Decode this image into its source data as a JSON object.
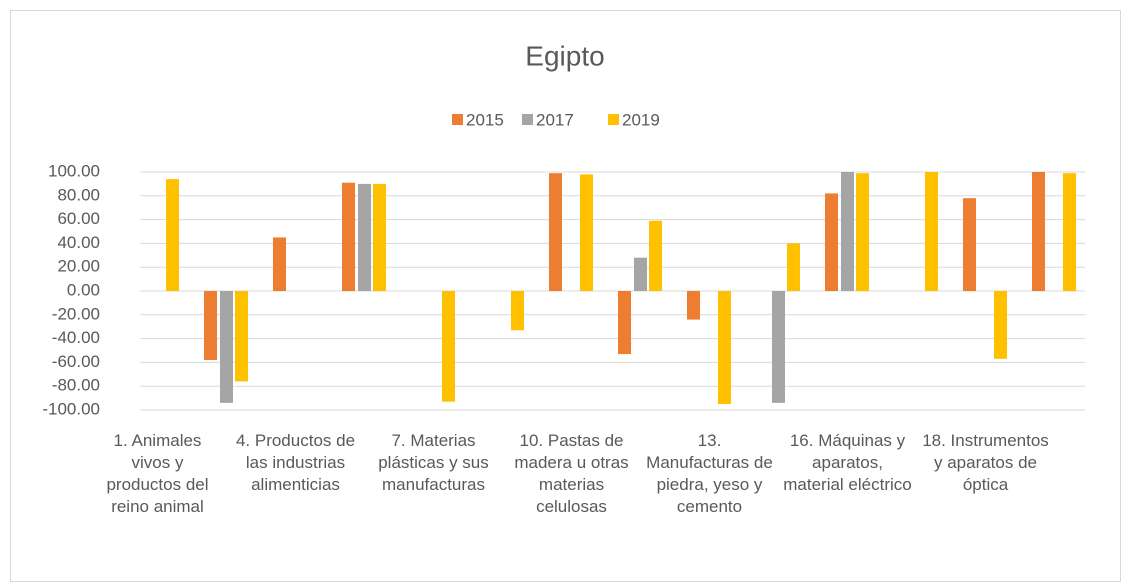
{
  "chart_data": {
    "type": "bar",
    "title": "Egipto",
    "categories": [
      "1. Animales vivos y productos del reino animal",
      null,
      "4. Productos de las industrias alimenticias",
      null,
      "7. Materias plásticas y sus manufacturas",
      null,
      "10. Pastas de madera u otras materias celulosas",
      null,
      "13. Manufacturas de piedra, yeso y cemento",
      null,
      "16. Máquinas y aparatos, material eléctrico",
      null,
      "18. Instrumentos y aparatos de óptica",
      null
    ],
    "series": [
      {
        "name": "2015",
        "color": "#ed7d31",
        "values": [
          null,
          -58,
          45,
          91,
          null,
          null,
          99,
          -53,
          -24,
          null,
          82,
          null,
          78,
          100
        ]
      },
      {
        "name": "2017",
        "color": "#a5a5a5",
        "values": [
          null,
          -94,
          null,
          90,
          null,
          null,
          null,
          28,
          null,
          -94,
          100,
          null,
          null,
          null
        ]
      },
      {
        "name": "2019",
        "color": "#ffc000",
        "values": [
          94,
          -76,
          null,
          90,
          -93,
          -33,
          98,
          59,
          -95,
          40,
          99,
          100,
          -57,
          99
        ]
      }
    ],
    "ylim": [
      -100,
      100
    ],
    "yticks": [
      {
        "value": -100,
        "label": "-100.00"
      },
      {
        "value": -80,
        "label": "-80.00"
      },
      {
        "value": -60,
        "label": "-60.00"
      },
      {
        "value": -40,
        "label": "-40.00"
      },
      {
        "value": -20,
        "label": "-20.00"
      },
      {
        "value": 0,
        "label": "0.00"
      },
      {
        "value": 20,
        "label": "20.00"
      },
      {
        "value": 40,
        "label": "40.00"
      },
      {
        "value": 60,
        "label": "60.00"
      },
      {
        "value": 80,
        "label": "80.00"
      },
      {
        "value": 100,
        "label": "100.00"
      }
    ],
    "grid": true,
    "legend": "top"
  }
}
